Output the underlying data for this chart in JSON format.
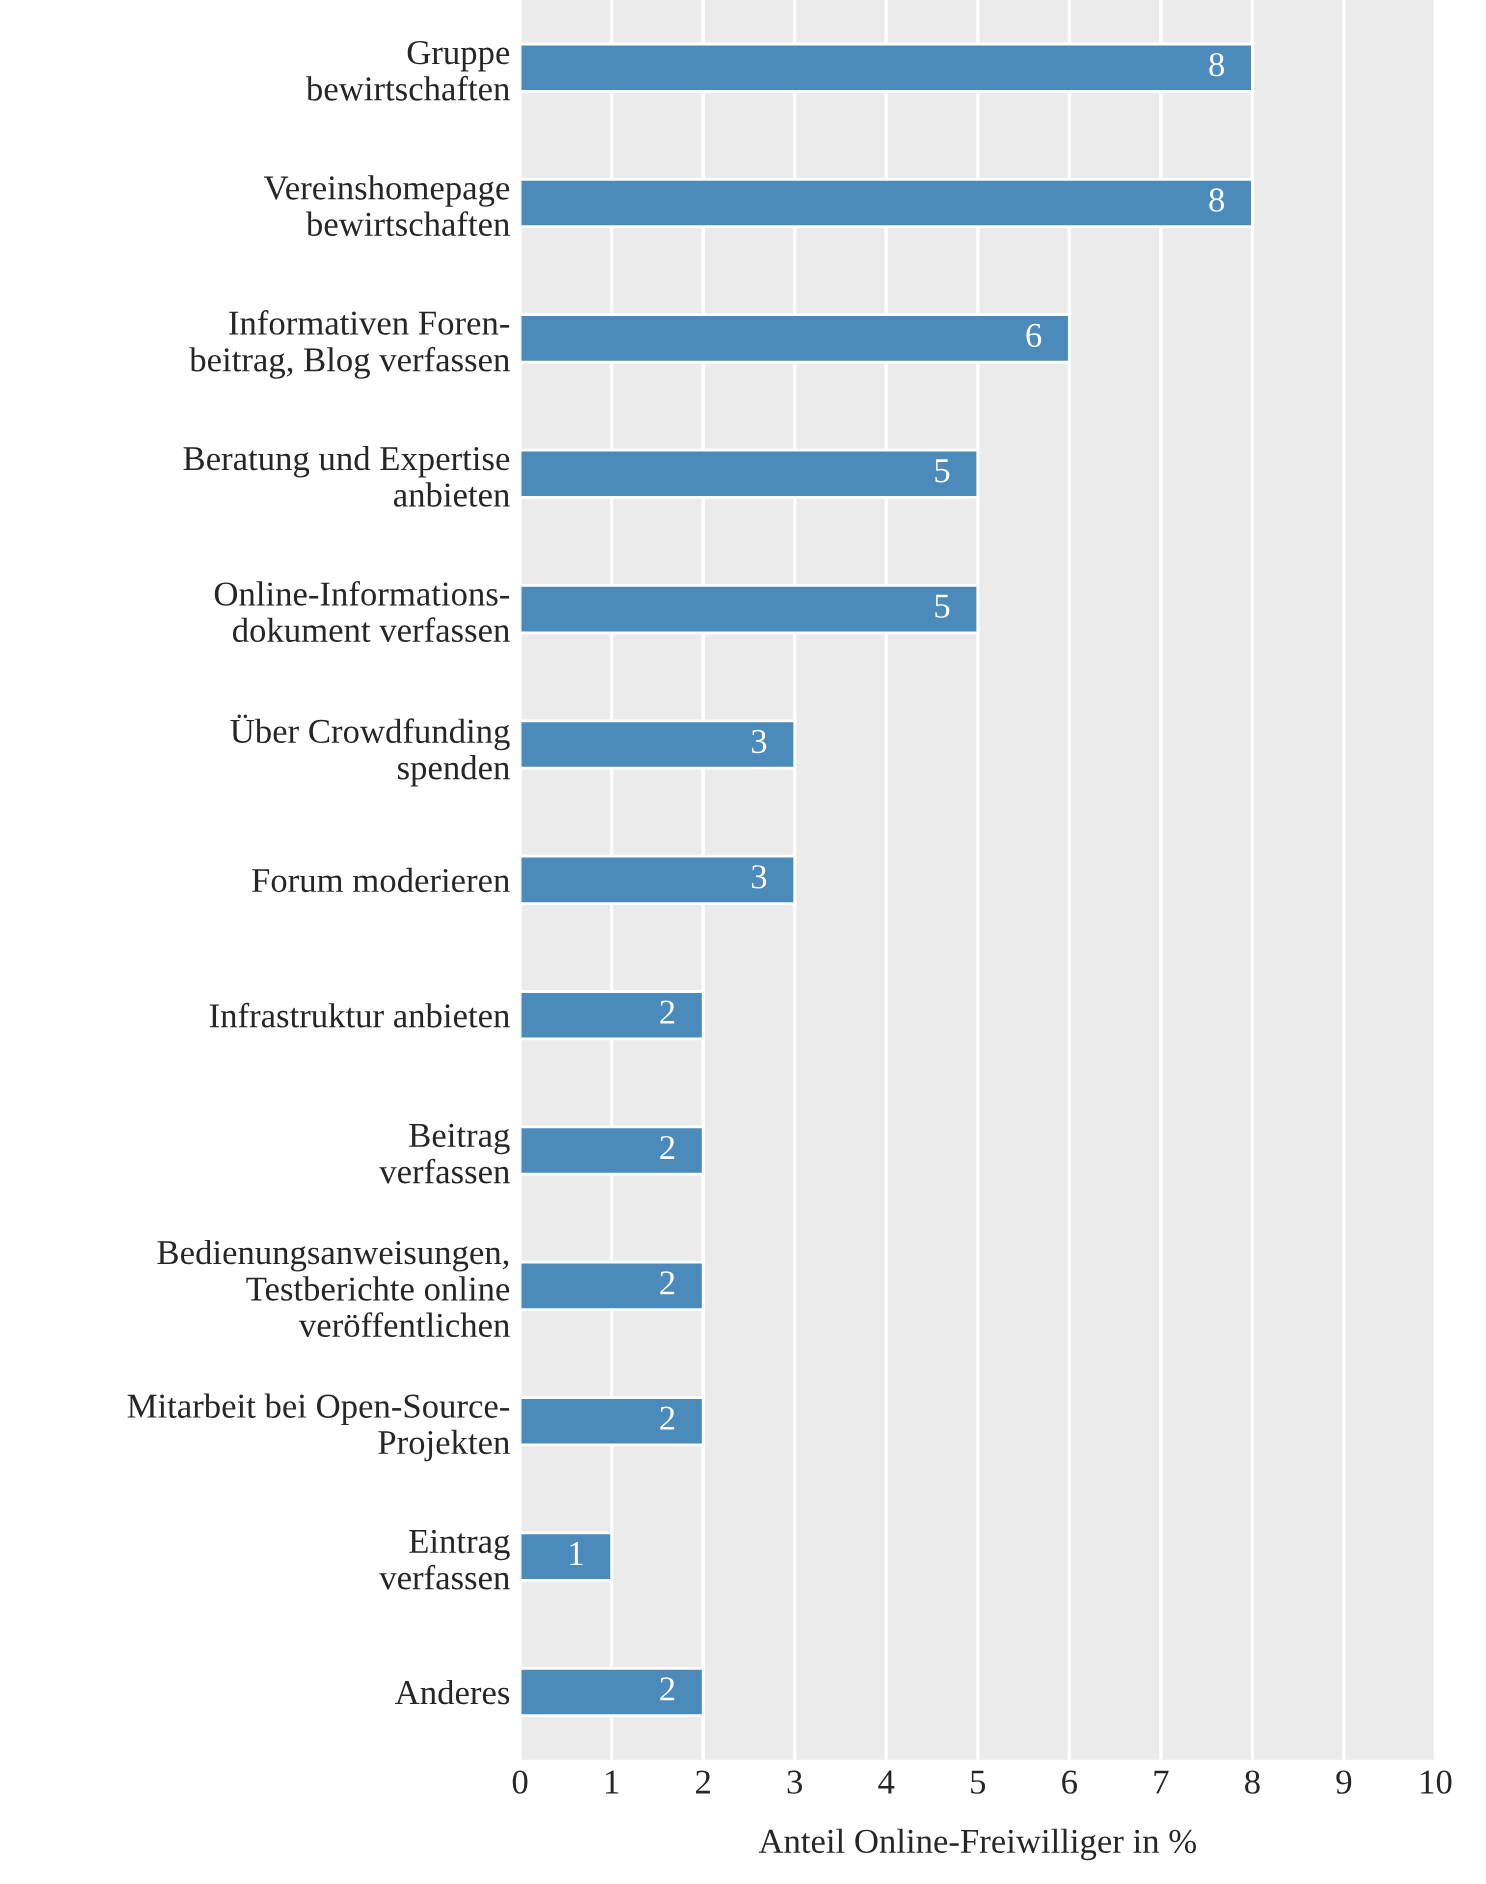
{
  "chart_data": {
    "type": "bar",
    "orientation": "horizontal",
    "categories": [
      "Gruppe\nbewirtschaften",
      "Vereinshomepage\nbewirtschaften",
      "Informativen Foren-\nbeitrag, Blog verfassen",
      "Beratung und Expertise\nanbieten",
      "Online-Informations-\ndokument verfassen",
      "Über Crowdfunding\nspenden",
      "Forum moderieren",
      "Infrastruktur anbieten",
      "Beitrag\nverfassen",
      "Bedienungsanweisungen,\nTestberichte online\nveröffentlichen",
      "Mitarbeit bei Open-Source-\nProjekten",
      "Eintrag\nverfassen",
      "Anderes"
    ],
    "values": [
      8,
      8,
      6,
      5,
      5,
      3,
      3,
      2,
      2,
      2,
      2,
      1,
      2
    ],
    "color": "#4a8bbb",
    "xlabel": "Anteil Online-Freiwilliger in %",
    "xlim": [
      0,
      10
    ],
    "xticks": [
      0,
      1,
      2,
      3,
      4,
      5,
      6,
      7,
      8,
      9,
      10
    ],
    "grid": "x",
    "data_labels": true
  }
}
